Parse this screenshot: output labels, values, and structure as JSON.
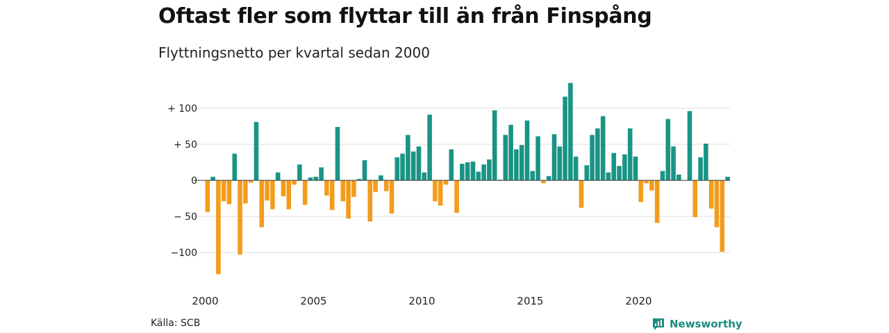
{
  "header": {
    "title": "Oftast fler som flyttar till än från Finspång",
    "subtitle": "Flyttningsnetto per kvartal sedan 2000"
  },
  "footer": {
    "source": "Källa: SCB",
    "brand": "Newsworthy"
  },
  "colors": {
    "positive": "#1a9484",
    "negative": "#f39c1c",
    "grid": "#dddddd",
    "brand": "#1a8c7f"
  },
  "icons": {
    "brand_logo": "newsworthy-logo-icon"
  },
  "chart_data": {
    "type": "bar",
    "title": "Oftast fler som flyttar till än från Finspång",
    "subtitle": "Flyttningsnetto per kvartal sedan 2000",
    "xlabel": "",
    "ylabel": "",
    "x_start": 2000,
    "periods_per_year": 4,
    "x_ticks": [
      "2000",
      "2005",
      "2010",
      "2015",
      "2020"
    ],
    "y_ticks": [
      {
        "value": 100,
        "label": "+ 100"
      },
      {
        "value": 50,
        "label": "+  50"
      },
      {
        "value": 0,
        "label": "0"
      },
      {
        "value": -50,
        "label": "− 50"
      },
      {
        "value": -100,
        "label": "−100"
      }
    ],
    "ylim": [
      -130,
      135
    ],
    "grid": true,
    "values": [
      -44,
      5,
      -130,
      -29,
      -33,
      37,
      -103,
      -32,
      -3,
      81,
      -65,
      -28,
      -40,
      11,
      -22,
      -40,
      -6,
      22,
      -34,
      4,
      5,
      18,
      -21,
      -41,
      74,
      -29,
      -53,
      -23,
      2,
      28,
      -57,
      -16,
      7,
      -15,
      -46,
      32,
      37,
      63,
      40,
      47,
      11,
      91,
      -29,
      -35,
      -6,
      43,
      -45,
      23,
      25,
      26,
      12,
      22,
      29,
      97,
      1,
      63,
      77,
      43,
      49,
      83,
      13,
      61,
      -4,
      6,
      64,
      47,
      116,
      135,
      33,
      -38,
      21,
      63,
      72,
      89,
      11,
      38,
      20,
      36,
      72,
      33,
      -30,
      -4,
      -14,
      -59,
      13,
      85,
      47,
      8,
      0,
      96,
      -51,
      32,
      51,
      -39,
      -65,
      -99,
      5
    ]
  }
}
